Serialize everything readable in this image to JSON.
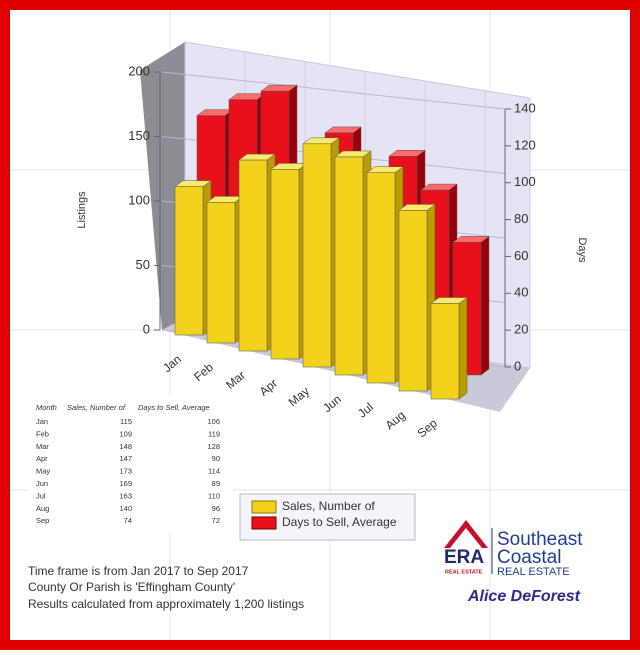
{
  "chart_data": {
    "type": "bar3d",
    "ylabel": "Listings",
    "y2label": "Days",
    "categories": [
      "Jan",
      "Feb",
      "Mar",
      "Apr",
      "May",
      "Jun",
      "Jul",
      "Aug",
      "Sep"
    ],
    "series": [
      {
        "name": "Sales, Number of",
        "color": "#f2d21a",
        "values": [
          115,
          109,
          148,
          147,
          173,
          169,
          163,
          140,
          74
        ]
      },
      {
        "name": "Days to Sell, Average",
        "color": "#e8101a",
        "axis": "y2",
        "values": [
          106,
          119,
          128,
          90,
          114,
          89,
          110,
          96,
          72
        ]
      }
    ],
    "ylim": [
      0,
      200
    ],
    "yticks": [
      0,
      50,
      100,
      150,
      200
    ],
    "y2lim": [
      0,
      140
    ],
    "y2ticks": [
      0,
      20,
      40,
      60,
      80,
      100,
      120,
      140
    ],
    "grid": true,
    "legend": "bottom"
  },
  "table": {
    "header": "Month"
  },
  "notes": [
    "Time frame is from Jan 2017 to Sep 2017",
    "County Or Parish is 'Effingham County'",
    "Results calculated from approximately 1,200 listings"
  ],
  "logo": {
    "mark": "ERA",
    "mark_sub": "REAL ESTATE",
    "line1": "Southeast",
    "line2": "Coastal",
    "line3": "REAL ESTATE"
  },
  "agent": "Alice DeForest"
}
